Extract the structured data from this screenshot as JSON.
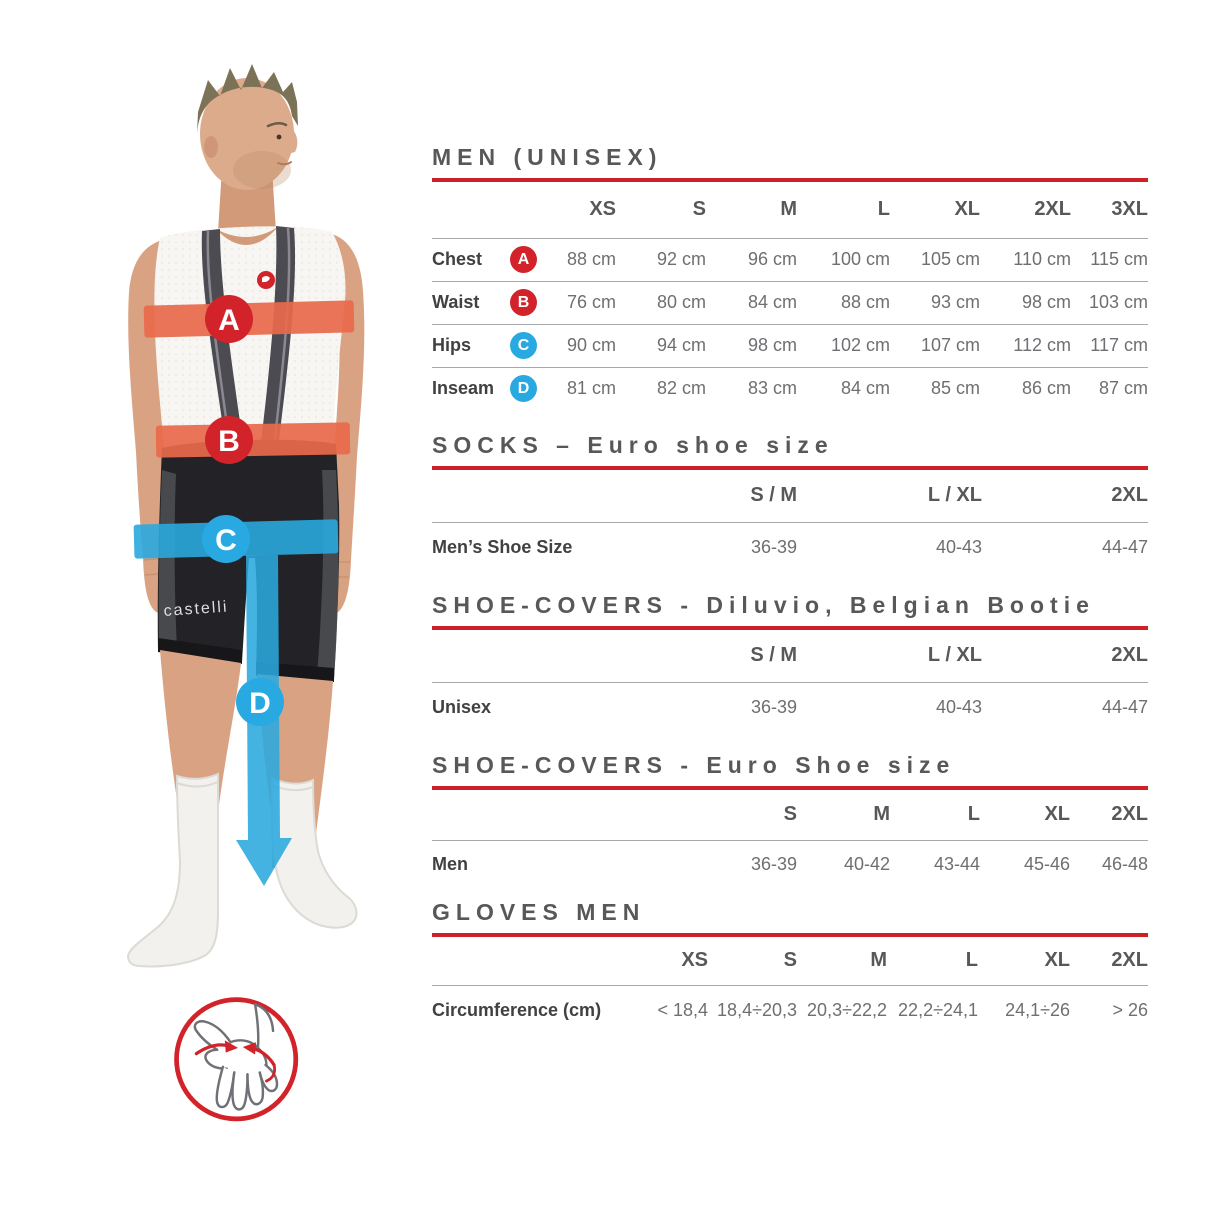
{
  "colors": {
    "accent_red_line": "#cb2127",
    "badge_red": "#d2232a",
    "badge_blue": "#29a9e1",
    "band_orange": "#e8694b",
    "band_blue": "#2aa9de",
    "heading_gray": "#57585a",
    "value_gray": "#6e6f72",
    "label_dark": "#414042",
    "divider_gray": "#a7a9ac"
  },
  "figure": {
    "description": "man-in-bib-shorts-measure-photo",
    "shorts_logo": "castelli",
    "markers": [
      {
        "letter": "A",
        "color": "red",
        "measure": "Chest"
      },
      {
        "letter": "B",
        "color": "red",
        "measure": "Waist"
      },
      {
        "letter": "C",
        "color": "blue",
        "measure": "Hips"
      },
      {
        "letter": "D",
        "color": "blue",
        "measure": "Inseam"
      }
    ]
  },
  "tables": [
    {
      "title": "MEN (UNISEX)",
      "columns": [
        "XS",
        "S",
        "M",
        "L",
        "XL",
        "2XL",
        "3XL"
      ],
      "rows": [
        {
          "label": "Chest",
          "badge": "A",
          "badge_color": "red",
          "values": [
            "88 cm",
            "92 cm",
            "96 cm",
            "100 cm",
            "105 cm",
            "110 cm",
            "115 cm"
          ]
        },
        {
          "label": "Waist",
          "badge": "B",
          "badge_color": "red",
          "values": [
            "76 cm",
            "80 cm",
            "84 cm",
            "88 cm",
            "93 cm",
            "98 cm",
            "103 cm"
          ]
        },
        {
          "label": "Hips",
          "badge": "C",
          "badge_color": "blue",
          "values": [
            "90 cm",
            "94 cm",
            "98 cm",
            "102 cm",
            "107 cm",
            "112 cm",
            "117 cm"
          ]
        },
        {
          "label": "Inseam",
          "badge": "D",
          "badge_color": "blue",
          "values": [
            "81 cm",
            "82 cm",
            "83 cm",
            "84 cm",
            "85 cm",
            "86 cm",
            "87 cm"
          ]
        }
      ]
    },
    {
      "title": "SOCKS – Euro shoe size",
      "columns": [
        "S / M",
        "L / XL",
        "2XL"
      ],
      "rows": [
        {
          "label": "Men’s Shoe Size",
          "values": [
            "36-39",
            "40-43",
            "44-47"
          ]
        }
      ]
    },
    {
      "title": "SHOE-COVERS - Diluvio, Belgian Bootie",
      "columns": [
        "S / M",
        "L / XL",
        "2XL"
      ],
      "rows": [
        {
          "label": "Unisex",
          "values": [
            "36-39",
            "40-43",
            "44-47"
          ]
        }
      ]
    },
    {
      "title": "SHOE-COVERS - Euro Shoe size",
      "columns": [
        "S",
        "M",
        "L",
        "XL",
        "2XL"
      ],
      "rows": [
        {
          "label": "Men",
          "values": [
            "36-39",
            "40-42",
            "43-44",
            "45-46",
            "46-48"
          ]
        }
      ]
    },
    {
      "title": "GLOVES MEN",
      "columns": [
        "XS",
        "S",
        "M",
        "L",
        "XL",
        "2XL"
      ],
      "rows": [
        {
          "label": "Circumference (cm)",
          "values": [
            "< 18,4",
            "18,4÷20,3",
            "20,3÷22,2",
            "22,2÷24,1",
            "24,1÷26",
            "> 26"
          ]
        }
      ]
    }
  ]
}
